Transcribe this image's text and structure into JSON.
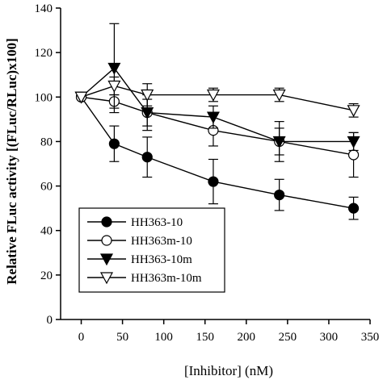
{
  "chart_data": {
    "type": "line",
    "title": "",
    "xlabel": "[Inhibitor] (nM)",
    "ylabel": "Relative FLuc activity [(FLuc/RLuc)x100]",
    "xlim": [
      -25,
      350
    ],
    "ylim": [
      0,
      140
    ],
    "xticks": [
      0,
      50,
      100,
      150,
      200,
      250,
      300,
      350
    ],
    "yticks": [
      0,
      20,
      40,
      60,
      80,
      100,
      120,
      140
    ],
    "grid": false,
    "legend_position": "bottom-left",
    "series": [
      {
        "name": "HH363-10",
        "marker": "filled-circle",
        "x": [
          0,
          40,
          80,
          160,
          240,
          330
        ],
        "y": [
          100,
          79,
          73,
          62,
          56,
          50
        ],
        "err": [
          0,
          8,
          9,
          10,
          7,
          5
        ]
      },
      {
        "name": "HH363m-10",
        "marker": "open-circle",
        "x": [
          0,
          40,
          80,
          160,
          240,
          330
        ],
        "y": [
          100,
          98,
          93,
          85,
          80,
          74
        ],
        "err": [
          0,
          3,
          6,
          7,
          9,
          10
        ]
      },
      {
        "name": "HH363-10m",
        "marker": "filled-triangle-down",
        "x": [
          0,
          40,
          80,
          160,
          240,
          330
        ],
        "y": [
          100,
          113,
          93,
          91,
          80,
          80
        ],
        "err": [
          0,
          20,
          8,
          5,
          6,
          4
        ]
      },
      {
        "name": "HH363m-10m",
        "marker": "open-triangle-down",
        "x": [
          0,
          40,
          80,
          160,
          240,
          330
        ],
        "y": [
          100,
          105,
          101,
          101,
          101,
          94
        ],
        "err": [
          0,
          4,
          5,
          3,
          3,
          3
        ]
      }
    ]
  }
}
